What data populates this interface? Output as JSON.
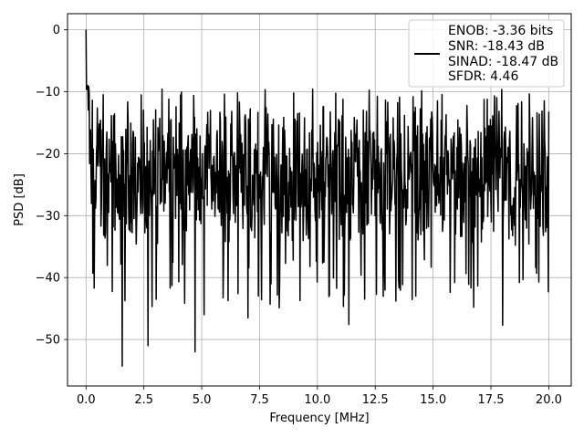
{
  "chart_data": {
    "type": "line",
    "title": "",
    "xlabel": "Frequency [MHz]",
    "ylabel": "PSD [dB]",
    "xlim": [
      -0.8,
      20.97
    ],
    "ylim": [
      -57.5,
      2.6
    ],
    "xticks": [
      0.0,
      2.5,
      5.0,
      7.5,
      10.0,
      12.5,
      15.0,
      17.5,
      20.0
    ],
    "xtick_labels": [
      "0.0",
      "2.5",
      "5.0",
      "7.5",
      "10.0",
      "12.5",
      "15.0",
      "17.5",
      "20.0"
    ],
    "yticks": [
      0,
      -10,
      -20,
      -30,
      -40,
      -50
    ],
    "ytick_labels": [
      "0",
      "−10",
      "−20",
      "−30",
      "−40",
      "−50"
    ],
    "grid": true,
    "legend_position": "top-right",
    "series": [
      {
        "name": "",
        "color": "#000000",
        "x_range": [
          0.0,
          20.0
        ],
        "num_points": 1024,
        "noise_floor_db": -23,
        "noise_spread_db": [
          -35,
          -12
        ],
        "peaks": [
          {
            "x": 0.0,
            "y": 0.0
          },
          {
            "x": 0.06,
            "y": -9.0
          }
        ],
        "dips": [
          {
            "x": 1.56,
            "y": -54.3
          },
          {
            "x": 2.67,
            "y": -51.0
          },
          {
            "x": 4.72,
            "y": -52.0
          },
          {
            "x": 11.36,
            "y": -47.6
          },
          {
            "x": 18.0,
            "y": -47.7
          },
          {
            "x": 0.36,
            "y": -41.7
          },
          {
            "x": 3.03,
            "y": -43.5
          },
          {
            "x": 5.1,
            "y": -46.0
          },
          {
            "x": 7.0,
            "y": -46.5
          },
          {
            "x": 9.25,
            "y": -43.7
          },
          {
            "x": 13.4,
            "y": -43.8
          },
          {
            "x": 14.25,
            "y": -43.0
          },
          {
            "x": 16.75,
            "y": -44.8
          }
        ]
      }
    ],
    "legend": {
      "lines": [
        "ENOB: -3.36 bits",
        "SNR: -18.43 dB",
        "SINAD: -18.47 dB",
        "SFDR: 4.46"
      ]
    }
  }
}
